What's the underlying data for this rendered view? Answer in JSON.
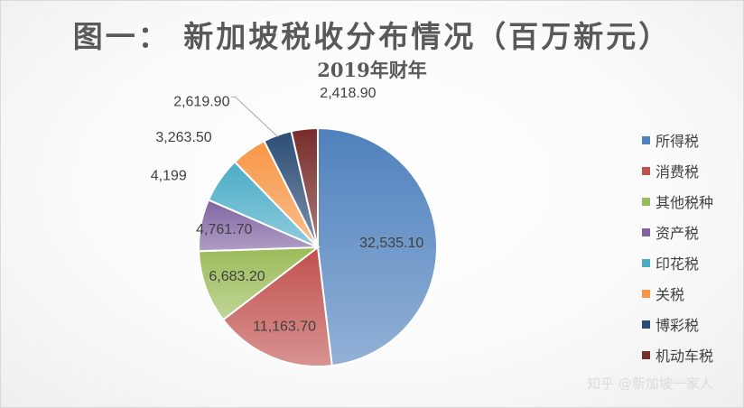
{
  "colors": {
    "所得税": "#4f81bd",
    "消费税": "#c0504d",
    "其他税种": "#9bbb59",
    "资产税": "#8064a2",
    "印花税": "#4bacc6",
    "关税": "#f79646",
    "博彩税": "#2c4d75",
    "机动车税": "#772c2a"
  },
  "watermark": "知乎 @新加坡一家人",
  "chart_data": {
    "type": "pie",
    "title": "图一：  新加坡税收分布情况（百万新元）",
    "subtitle": "2019年财年",
    "legend_position": "right",
    "categories": [
      "所得税",
      "消费税",
      "其他税种",
      "资产税",
      "印花税",
      "关税",
      "博彩税",
      "机动车税"
    ],
    "values": [
      32535.1,
      11163.7,
      6683.2,
      4761.7,
      4199,
      3263.5,
      2619.9,
      2418.9
    ],
    "labels": [
      "32,535.10",
      "11,163.70",
      "6,683.20",
      "4,761.70",
      "4,199",
      "3,263.50",
      "2,619.90",
      "2,418.90"
    ]
  }
}
